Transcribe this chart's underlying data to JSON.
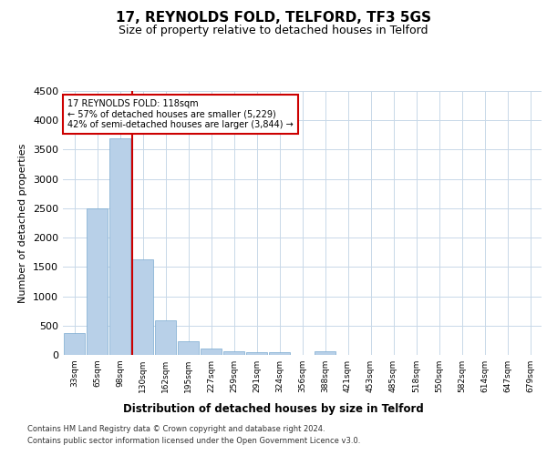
{
  "title": "17, REYNOLDS FOLD, TELFORD, TF3 5GS",
  "subtitle": "Size of property relative to detached houses in Telford",
  "xlabel": "Distribution of detached houses by size in Telford",
  "ylabel": "Number of detached properties",
  "categories": [
    "33sqm",
    "65sqm",
    "98sqm",
    "130sqm",
    "162sqm",
    "195sqm",
    "227sqm",
    "259sqm",
    "291sqm",
    "324sqm",
    "356sqm",
    "388sqm",
    "421sqm",
    "453sqm",
    "485sqm",
    "518sqm",
    "550sqm",
    "582sqm",
    "614sqm",
    "647sqm",
    "679sqm"
  ],
  "values": [
    375,
    2500,
    3700,
    1630,
    590,
    230,
    110,
    60,
    50,
    45,
    0,
    55,
    0,
    0,
    0,
    0,
    0,
    0,
    0,
    0,
    0
  ],
  "bar_color": "#b8d0e8",
  "bar_edge_color": "#7aaad0",
  "vline_color": "#cc0000",
  "vline_index": 2.55,
  "ylim": [
    0,
    4500
  ],
  "yticks": [
    0,
    500,
    1000,
    1500,
    2000,
    2500,
    3000,
    3500,
    4000,
    4500
  ],
  "annotation_text": "17 REYNOLDS FOLD: 118sqm\n← 57% of detached houses are smaller (5,229)\n42% of semi-detached houses are larger (3,844) →",
  "annotation_box_color": "#ffffff",
  "annotation_border_color": "#cc0000",
  "footer_line1": "Contains HM Land Registry data © Crown copyright and database right 2024.",
  "footer_line2": "Contains public sector information licensed under the Open Government Licence v3.0.",
  "bg_color": "#ffffff",
  "grid_color": "#c8d8e8",
  "title_fontsize": 11,
  "subtitle_fontsize": 9,
  "xlabel_fontsize": 8.5,
  "ylabel_fontsize": 8
}
